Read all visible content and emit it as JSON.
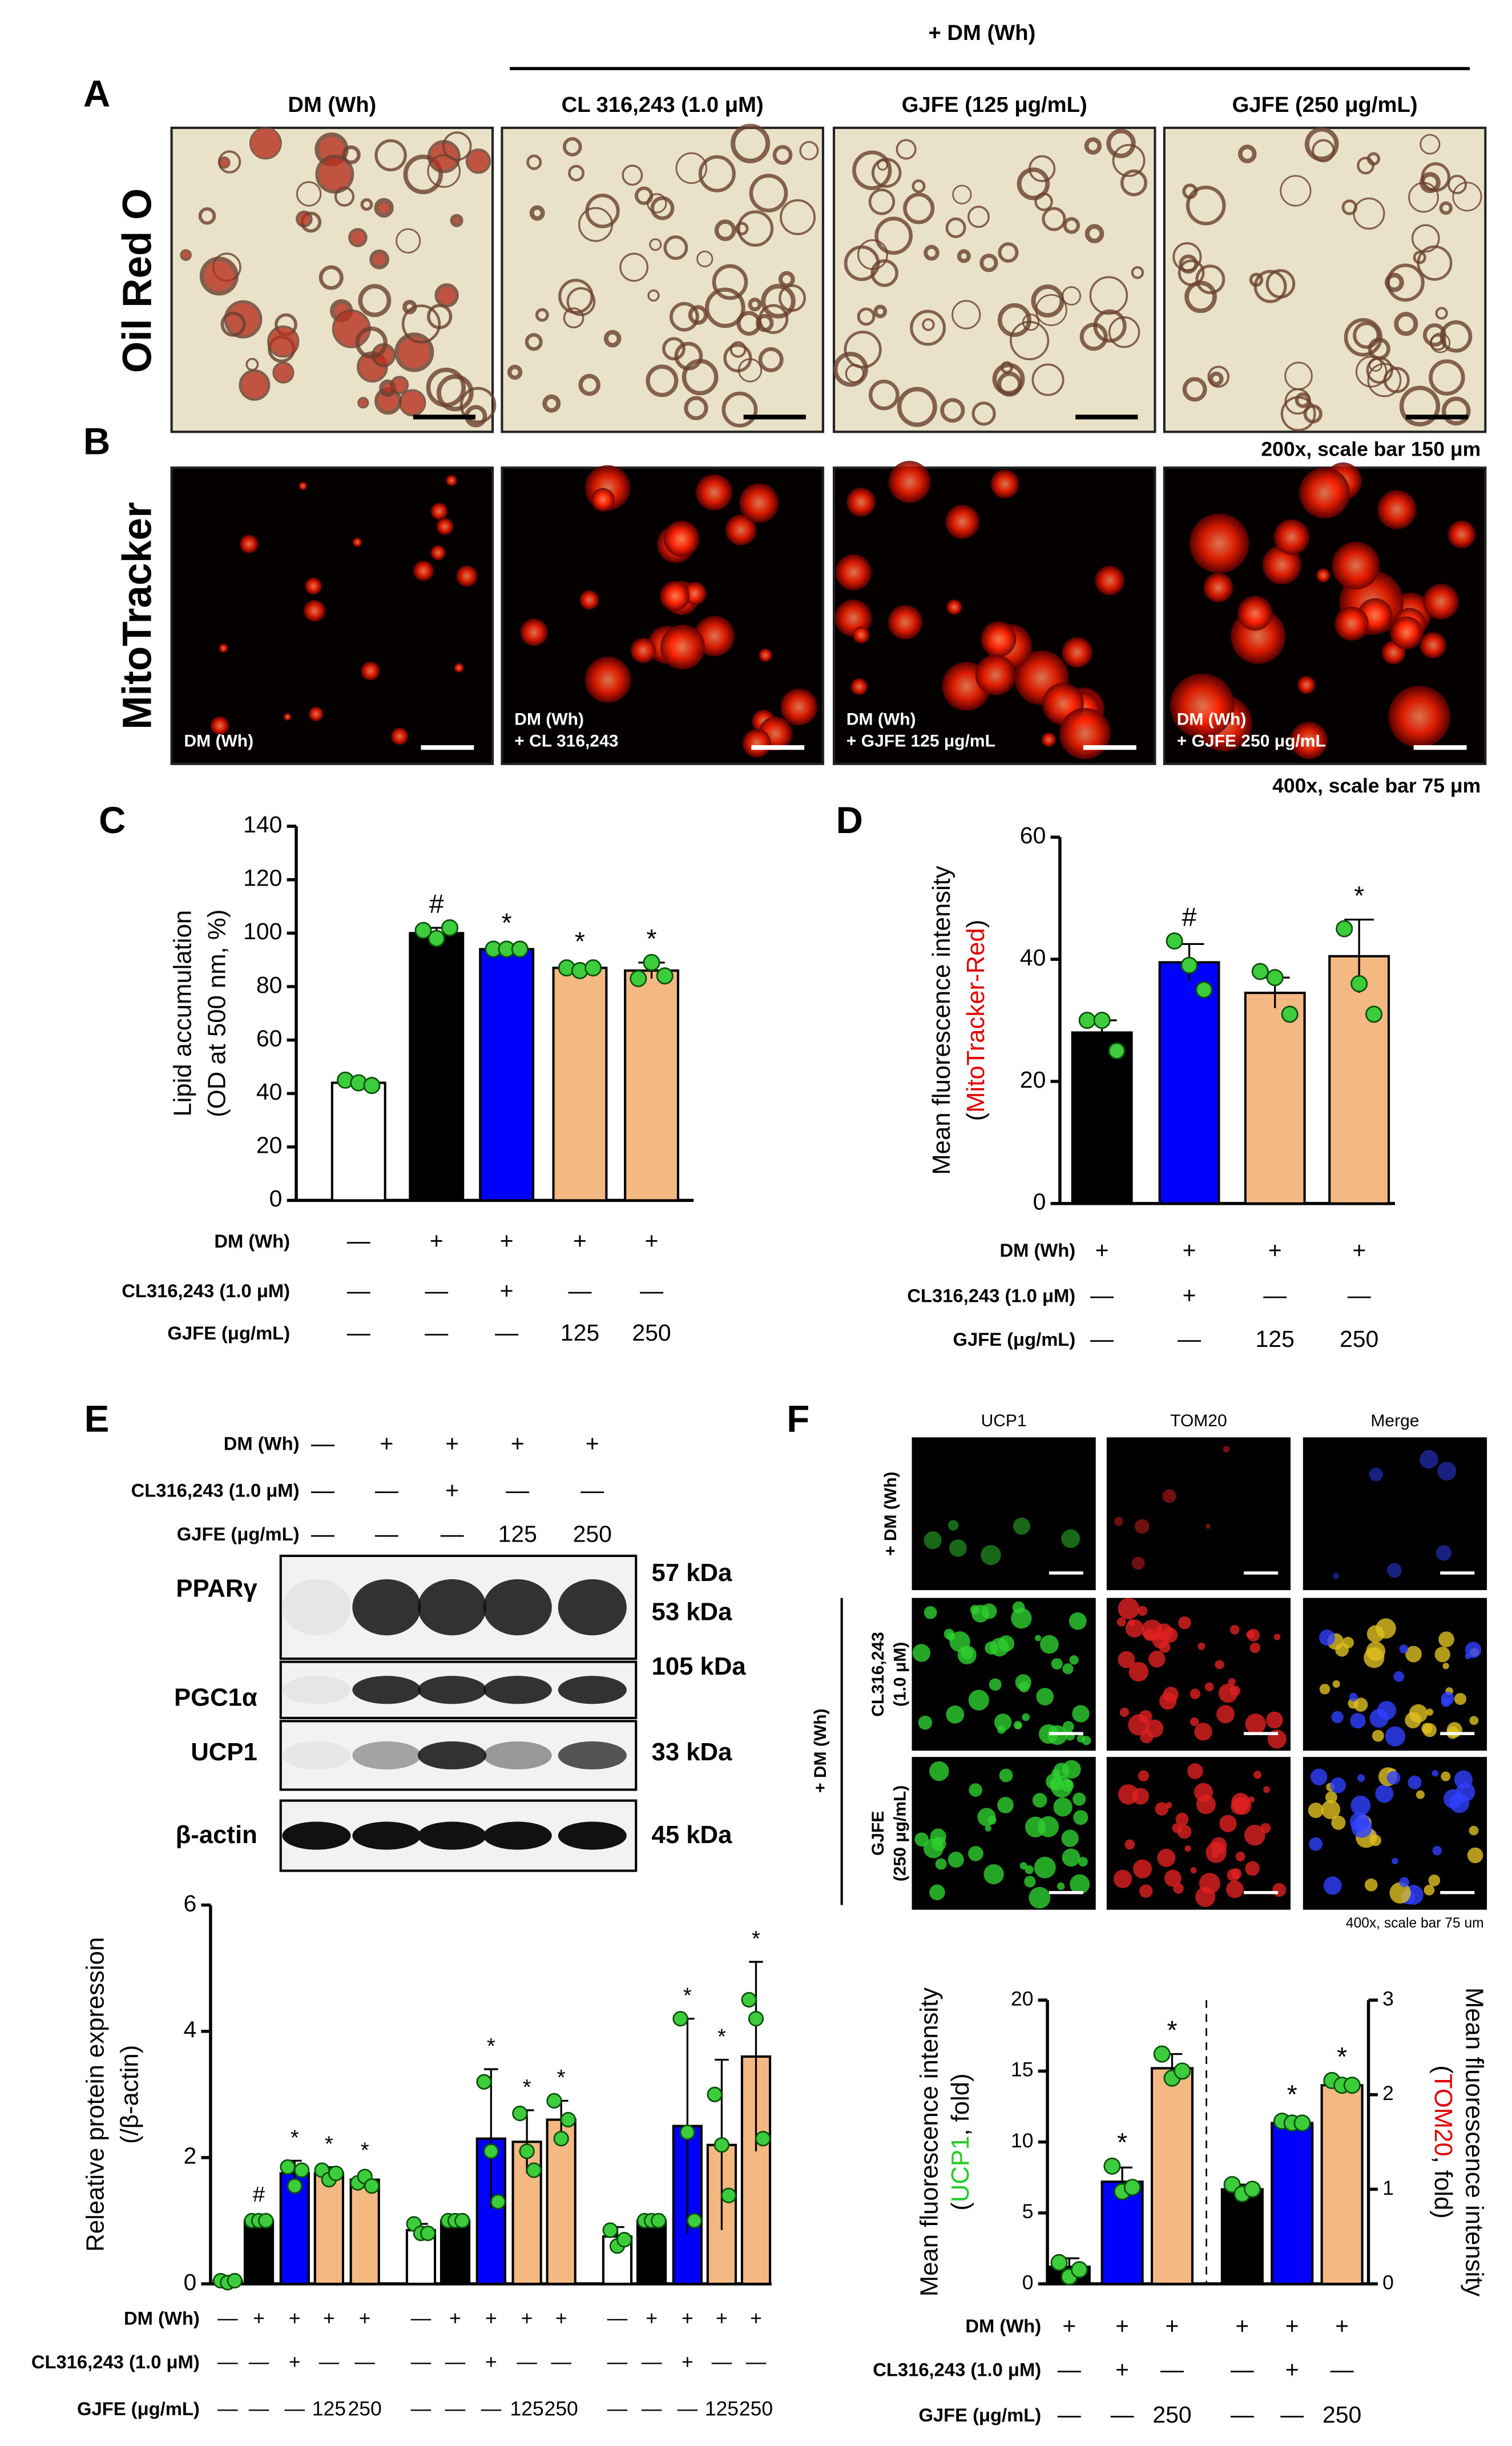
{
  "figure": {
    "panels": [
      "A",
      "B",
      "C",
      "D",
      "E",
      "F"
    ],
    "top_label": "+ DM (Wh)",
    "columns": [
      "DM (Wh)",
      "CL 316,243 (1.0 μM)",
      "GJFE (125 μg/mL)",
      "GJFE (250 μg/mL)"
    ],
    "rows": [
      "Oil Red O",
      "MitoTracker"
    ],
    "scales": [
      "200x, scale bar 150 μm",
      "400x, scale bar 75 μm"
    ],
    "mito_captions": [
      [
        "DM (Wh)"
      ],
      [
        "DM (Wh)",
        "+ CL 316,243"
      ],
      [
        "DM (Wh)",
        "+ GJFE 125 μg/mL"
      ],
      [
        "DM (Wh)",
        "+ GJFE 250 μg/mL"
      ]
    ],
    "blot": {
      "treatment": [
        {
          "label": "DM (Wh)",
          "cells": [
            "—",
            "+",
            "+",
            "+",
            "+"
          ]
        },
        {
          "label": "CL316,243 (1.0 μM)",
          "cells": [
            "—",
            "—",
            "+",
            "—",
            "—"
          ]
        },
        {
          "label": "GJFE (μg/mL)",
          "cells": [
            "—",
            "—",
            "—",
            "125",
            "250"
          ]
        }
      ],
      "bands": [
        {
          "name": "PPARγ",
          "sizes": [
            "57 kDa",
            "53 kDa"
          ]
        },
        {
          "name": "PGC1α",
          "sizes": [
            "105 kDa"
          ]
        },
        {
          "name": "UCP1",
          "sizes": [
            "33 kDa"
          ]
        },
        {
          "name": "β-actin",
          "sizes": [
            "45 kDa"
          ]
        }
      ]
    },
    "if": {
      "columns": [
        "UCP1",
        "TOM20",
        "Merge"
      ],
      "rows": [
        [
          "+ DM (Wh)"
        ],
        [
          "CL316,243",
          "(1.0 μM)"
        ],
        [
          "GJFE",
          "(250 μg/mL)"
        ]
      ],
      "group_label": "+ DM (Wh)",
      "scale": "400x, scale bar 75 um"
    }
  },
  "chart_data": [
    {
      "type": "bar",
      "ylabel": [
        [
          {
            "text": "Lipid accumulation",
            "color": "#000000"
          }
        ],
        [
          {
            "text": "(OD at 500 nm, %)",
            "color": "#000000"
          }
        ]
      ],
      "ylim": [
        0,
        140
      ],
      "yticks": [
        0,
        20,
        40,
        60,
        80,
        100,
        120,
        140
      ],
      "series": [
        {
          "colors": [
            "#ffffff",
            "#000000",
            "#0000ff",
            "#f4b983",
            "#f4b983"
          ],
          "values": [
            44,
            100,
            94,
            87,
            86
          ],
          "errors": [
            1,
            2,
            1,
            1,
            3
          ],
          "points": [
            [
              45,
              44,
              43
            ],
            [
              101,
              98,
              102
            ],
            [
              94,
              94,
              94
            ],
            [
              87,
              86,
              87
            ],
            [
              83,
              89,
              84
            ]
          ],
          "annotations": [
            null,
            "#",
            "*",
            "*",
            "*"
          ]
        }
      ],
      "treatment": [
        {
          "label": "DM (Wh)",
          "cells": [
            "—",
            "+",
            "+",
            "+",
            "+"
          ]
        },
        {
          "label": "CL316,243 (1.0 μM)",
          "cells": [
            "—",
            "—",
            "+",
            "—",
            "—"
          ]
        },
        {
          "label": "GJFE (μg/mL)",
          "cells": [
            "—",
            "—",
            "—",
            "125",
            "250"
          ]
        }
      ]
    },
    {
      "type": "bar",
      "ylabel": [
        [
          {
            "text": "Mean fluorescence intensity",
            "color": "#000000"
          }
        ],
        [
          {
            "text": "(",
            "color": "#000000"
          },
          {
            "text": "MitoTracker-Red",
            "color": "#e00000"
          },
          {
            "text": ")",
            "color": "#000000"
          }
        ]
      ],
      "ylim": [
        0,
        60
      ],
      "yticks": [
        0,
        20,
        40,
        60
      ],
      "series": [
        {
          "colors": [
            "#000000",
            "#0000ff",
            "#f4b983",
            "#f4b983"
          ],
          "values": [
            28,
            39.5,
            34.5,
            40.5
          ],
          "errors": [
            2,
            3,
            2.5,
            6
          ],
          "points": [
            [
              30,
              30,
              25
            ],
            [
              43,
              39,
              35
            ],
            [
              38,
              37,
              31
            ],
            [
              45,
              36,
              31
            ]
          ],
          "annotations": [
            null,
            "#",
            null,
            "*"
          ]
        }
      ],
      "treatment": [
        {
          "label": "DM (Wh)",
          "cells": [
            "+",
            "+",
            "+",
            "+"
          ]
        },
        {
          "label": "CL316,243 (1.0 μM)",
          "cells": [
            "—",
            "+",
            "—",
            "—"
          ]
        },
        {
          "label": "GJFE (μg/mL)",
          "cells": [
            "—",
            "—",
            "125",
            "250"
          ]
        }
      ]
    },
    {
      "type": "bar",
      "ylabel": [
        [
          {
            "text": "Releative protein expression",
            "color": "#000000"
          }
        ],
        [
          {
            "text": "(/β-actin)",
            "color": "#000000"
          }
        ]
      ],
      "ylim": [
        0,
        6
      ],
      "yticks": [
        0,
        2,
        4,
        6
      ],
      "series": [
        {
          "colors": [
            "#ffffff",
            "#000000",
            "#0000ff",
            "#f4b983",
            "#f4b983"
          ],
          "values": [
            0.05,
            1.0,
            1.75,
            1.75,
            1.65
          ],
          "errors": [
            0.03,
            0.05,
            0.2,
            0.1,
            0.1
          ],
          "points": [
            [
              0.05,
              0.02,
              0.05
            ],
            [
              1.0,
              1.0,
              1.0
            ],
            [
              1.85,
              1.55,
              1.8
            ],
            [
              1.8,
              1.65,
              1.75
            ],
            [
              1.6,
              1.7,
              1.55
            ]
          ],
          "annotations": [
            null,
            "#",
            "*",
            "*",
            "*"
          ]
        },
        {
          "colors": [
            "#ffffff",
            "#000000",
            "#0000ff",
            "#f4b983",
            "#f4b983"
          ],
          "values": [
            0.85,
            1.0,
            2.3,
            2.25,
            2.6
          ],
          "errors": [
            0.1,
            0.03,
            1.1,
            0.5,
            0.3
          ],
          "points": [
            [
              0.95,
              0.8,
              0.8
            ],
            [
              1.0,
              1.0,
              1.0
            ],
            [
              3.2,
              2.1,
              1.3
            ],
            [
              2.7,
              2.1,
              1.8
            ],
            [
              2.9,
              2.3,
              2.6
            ]
          ],
          "annotations": [
            null,
            null,
            "*",
            "*",
            "*"
          ]
        },
        {
          "colors": [
            "#ffffff",
            "#000000",
            "#0000ff",
            "#f4b983",
            "#f4b983"
          ],
          "values": [
            0.75,
            1.0,
            2.5,
            2.2,
            3.6
          ],
          "errors": [
            0.15,
            0.03,
            1.7,
            1.35,
            1.5
          ],
          "points": [
            [
              0.85,
              0.6,
              0.7
            ],
            [
              1.0,
              1.0,
              1.0
            ],
            [
              4.2,
              2.4,
              1.0
            ],
            [
              3.0,
              2.2,
              1.4
            ],
            [
              4.5,
              4.2,
              2.3
            ]
          ],
          "annotations": [
            null,
            null,
            "*",
            "*",
            "*"
          ]
        }
      ],
      "treatment": [
        {
          "label": "DM (Wh)",
          "cells": [
            "—",
            "+",
            "+",
            "+",
            "+",
            "—",
            "+",
            "+",
            "+",
            "+",
            "—",
            "+",
            "+",
            "+",
            "+"
          ]
        },
        {
          "label": "CL316,243 (1.0 μM)",
          "cells": [
            "—",
            "—",
            "+",
            "—",
            "—",
            "—",
            "—",
            "+",
            "—",
            "—",
            "—",
            "—",
            "+",
            "—",
            "—"
          ]
        },
        {
          "label": "GJFE (μg/mL)",
          "cells": [
            "—",
            "—",
            "—",
            "125",
            "250",
            "—",
            "—",
            "—",
            "125",
            "250",
            "—",
            "—",
            "—",
            "125",
            "250"
          ]
        }
      ]
    },
    {
      "type": "bar",
      "ylabel": [
        [
          {
            "text": "Mean fluorescence intensity",
            "color": "#000000"
          }
        ],
        [
          {
            "text": "(",
            "color": "#000000"
          },
          {
            "text": "UCP1",
            "color": "#22cc22"
          },
          {
            "text": ", fold)",
            "color": "#000000"
          }
        ]
      ],
      "y2label": [
        [
          {
            "text": "Mean fluorescence intensity",
            "color": "#000000"
          }
        ],
        [
          {
            "text": "(",
            "color": "#000000"
          },
          {
            "text": "TOM20",
            "color": "#e00000"
          },
          {
            "text": ", fold)",
            "color": "#000000"
          }
        ]
      ],
      "ylim": [
        0,
        20
      ],
      "yticks": [
        0,
        5,
        10,
        15,
        20
      ],
      "y2lim": [
        0,
        3
      ],
      "y2ticks": [
        0,
        1,
        2,
        3
      ],
      "series": [
        {
          "colors": [
            "#000000",
            "#0000ff",
            "#f4b983"
          ],
          "values": [
            1.2,
            7.2,
            15.2
          ],
          "errors": [
            0.6,
            1.0,
            1.0
          ],
          "points": [
            [
              1.5,
              0.5,
              1.0
            ],
            [
              8.3,
              6.5,
              6.8
            ],
            [
              16.2,
              14.5,
              15.0
            ]
          ],
          "annotations": [
            null,
            "*",
            "*"
          ]
        },
        {
          "axis": "y2",
          "colors": [
            "#000000",
            "#0000ff",
            "#f4b983"
          ],
          "values": [
            1.0,
            1.7,
            2.1
          ],
          "errors": [
            0.05,
            0.05,
            0.05
          ],
          "points": [
            [
              1.05,
              0.95,
              1.0
            ],
            [
              1.72,
              1.7,
              1.7
            ],
            [
              2.15,
              2.1,
              2.1
            ]
          ],
          "annotations": [
            null,
            "*",
            "*"
          ]
        }
      ],
      "treatment": [
        {
          "label": "DM (Wh)",
          "cells": [
            "+",
            "+",
            "+",
            "+",
            "+",
            "+"
          ]
        },
        {
          "label": "CL316,243 (1.0 μM)",
          "cells": [
            "—",
            "+",
            "—",
            "—",
            "+",
            "—"
          ]
        },
        {
          "label": "GJFE (μg/mL)",
          "cells": [
            "—",
            "—",
            "250",
            "—",
            "—",
            "250"
          ]
        }
      ]
    }
  ]
}
